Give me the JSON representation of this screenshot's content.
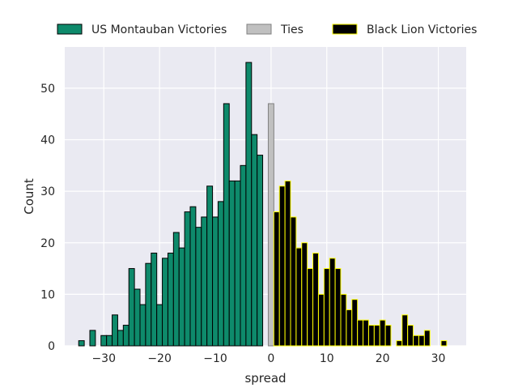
{
  "chart_data": {
    "type": "bar",
    "xlabel": "spread",
    "ylabel": "Count",
    "xlim": [
      -37,
      35
    ],
    "ylim": [
      0,
      58
    ],
    "xticks": [
      -30,
      -20,
      -10,
      0,
      10,
      20,
      30
    ],
    "yticks": [
      0,
      10,
      20,
      30,
      40,
      50
    ],
    "grid": true,
    "legend_position": "top",
    "bin_width": 1,
    "series": [
      {
        "name": "US Montauban Victories",
        "color": "#0e8a6b",
        "edge_color": "#000000",
        "x": [
          -34,
          -33,
          -32,
          -31,
          -30,
          -29,
          -28,
          -27,
          -26,
          -25,
          -24,
          -23,
          -22,
          -21,
          -20,
          -19,
          -18,
          -17,
          -16,
          -15,
          -14,
          -13,
          -12,
          -11,
          -10,
          -9,
          -8,
          -7,
          -6,
          -5,
          -4,
          -3,
          -2,
          -1
        ],
        "values": [
          1,
          0,
          3,
          0,
          2,
          2,
          6,
          3,
          4,
          15,
          11,
          8,
          16,
          18,
          8,
          17,
          18,
          22,
          19,
          26,
          27,
          23,
          25,
          31,
          25,
          28,
          47,
          32,
          32,
          35,
          55,
          41,
          37,
          0
        ]
      },
      {
        "name": "Ties",
        "color": "#c0c0c0",
        "edge_color": "#808080",
        "x": [
          0
        ],
        "values": [
          47
        ]
      },
      {
        "name": "Black Lion Victories",
        "color": "#000000",
        "edge_color": "#ffff00",
        "x": [
          1,
          2,
          3,
          4,
          5,
          6,
          7,
          8,
          9,
          10,
          11,
          12,
          13,
          14,
          15,
          16,
          17,
          18,
          19,
          20,
          21,
          22,
          23,
          24,
          25,
          26,
          27,
          28,
          29,
          30,
          31
        ],
        "values": [
          26,
          31,
          32,
          25,
          19,
          20,
          15,
          18,
          10,
          15,
          17,
          15,
          10,
          7,
          9,
          5,
          5,
          4,
          4,
          5,
          4,
          0,
          1,
          6,
          4,
          2,
          2,
          3,
          0,
          0,
          1
        ]
      }
    ]
  }
}
